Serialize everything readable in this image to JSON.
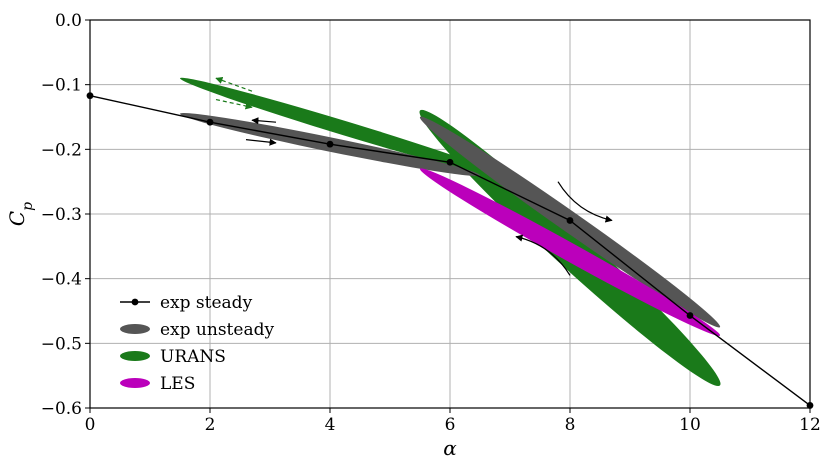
{
  "chart_data": {
    "type": "line",
    "xlabel": "α",
    "ylabel": "C_p",
    "xlim": [
      0,
      12
    ],
    "ylim": [
      -0.6,
      0.0
    ],
    "x_ticks": [
      0,
      2,
      4,
      6,
      8,
      10,
      12
    ],
    "y_ticks": [
      0.0,
      -0.1,
      -0.2,
      -0.3,
      -0.4,
      -0.5,
      -0.6
    ],
    "x_tick_labels": [
      "0",
      "2",
      "4",
      "6",
      "8",
      "10",
      "12"
    ],
    "y_tick_labels": [
      "0.0",
      "−0.1",
      "−0.2",
      "−0.3",
      "−0.4",
      "−0.5",
      "−0.6"
    ],
    "grid": true,
    "legend_position": "bottom-left",
    "legend": [
      "exp steady",
      "exp unsteady",
      "URANS",
      "LES"
    ],
    "colors": {
      "exp_steady": "#000000",
      "exp_unsteady": "#555555",
      "urans": "#1a7a1a",
      "les": "#bb00bb"
    },
    "series": [
      {
        "name": "exp steady",
        "kind": "line-markers",
        "x": [
          0,
          2,
          4,
          6,
          8,
          10,
          12
        ],
        "y": [
          -0.117,
          -0.158,
          -0.192,
          -0.22,
          -0.31,
          -0.457,
          -0.596
        ]
      },
      {
        "name": "exp unsteady",
        "kind": "loops",
        "loops": [
          {
            "p1": [
              1.5,
              -0.145
            ],
            "p2": [
              6.5,
              -0.24
            ],
            "width": 0.011
          },
          {
            "p1": [
              5.5,
              -0.15
            ],
            "p2": [
              10.5,
              -0.475
            ],
            "width": 0.016
          }
        ]
      },
      {
        "name": "URANS",
        "kind": "loops",
        "loops": [
          {
            "p1": [
              1.5,
              -0.09
            ],
            "p2": [
              7.0,
              -0.245
            ],
            "width": 0.011
          },
          {
            "p1": [
              5.5,
              -0.14
            ],
            "p2": [
              10.5,
              -0.565
            ],
            "width": 0.028
          }
        ]
      },
      {
        "name": "LES",
        "kind": "loops",
        "loops": [
          {
            "p1": [
              5.5,
              -0.23
            ],
            "p2": [
              10.5,
              -0.488
            ],
            "width": 0.014
          }
        ]
      }
    ],
    "arrows": [
      {
        "color": "#1a7a1a",
        "dashed": true,
        "from": [
          2.7,
          -0.11
        ],
        "to": [
          2.1,
          -0.09
        ]
      },
      {
        "color": "#1a7a1a",
        "dashed": true,
        "from": [
          2.1,
          -0.123
        ],
        "to": [
          2.7,
          -0.135
        ]
      },
      {
        "color": "#000000",
        "dashed": false,
        "from": [
          3.1,
          -0.158
        ],
        "to": [
          2.7,
          -0.155
        ]
      },
      {
        "color": "#000000",
        "dashed": false,
        "from": [
          2.6,
          -0.185
        ],
        "to": [
          3.1,
          -0.19
        ]
      },
      {
        "color": "#000000",
        "dashed": false,
        "curved": true,
        "from": [
          7.8,
          -0.25
        ],
        "to": [
          8.7,
          -0.31
        ]
      },
      {
        "color": "#000000",
        "dashed": false,
        "curved": true,
        "from": [
          8.0,
          -0.395
        ],
        "to": [
          7.1,
          -0.335
        ]
      }
    ]
  }
}
